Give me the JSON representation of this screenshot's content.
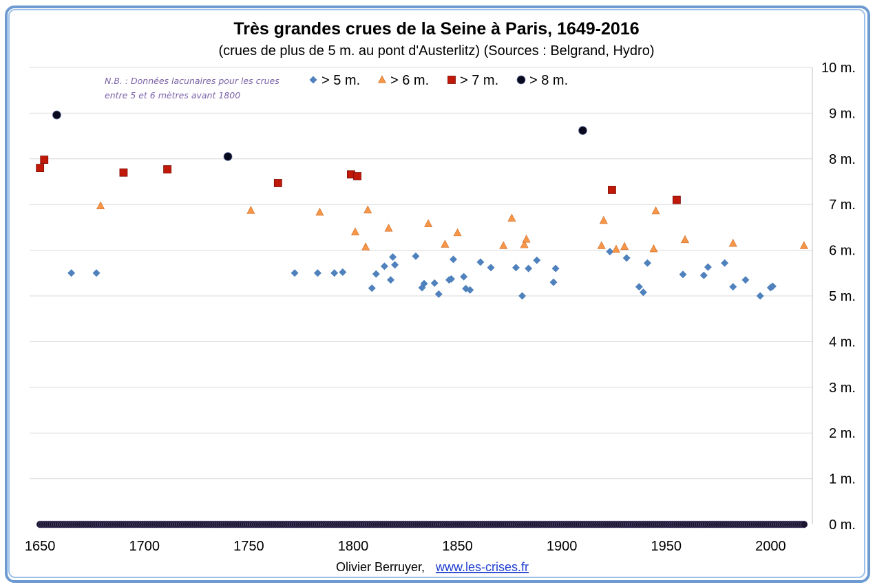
{
  "chart_data": {
    "type": "scatter",
    "title": "Très grandes crues de la Seine à Paris, 1649-2016",
    "subtitle": "(crues de plus de 5 m. au pont d'Austerlitz) (Sources : Belgrand, Hydro)",
    "note": [
      "N.B. : Données lacunaires pour les crues",
      "entre 5 et 6 mètres avant 1800"
    ],
    "xlim": [
      1645,
      2020
    ],
    "ylim": [
      0,
      10
    ],
    "x_ticks": [
      1650,
      1700,
      1750,
      1800,
      1850,
      1900,
      1950,
      2000
    ],
    "y_ticks": [
      {
        "value": 0,
        "label": "0 m."
      },
      {
        "value": 1,
        "label": "1 m."
      },
      {
        "value": 2,
        "label": "2 m."
      },
      {
        "value": 3,
        "label": "3 m."
      },
      {
        "value": 4,
        "label": "4 m."
      },
      {
        "value": 5,
        "label": "5 m."
      },
      {
        "value": 6,
        "label": "6 m."
      },
      {
        "value": 7,
        "label": "7 m."
      },
      {
        "value": 8,
        "label": "8 m."
      },
      {
        "value": 9,
        "label": "9 m."
      },
      {
        "value": 10,
        "label": "10 m."
      }
    ],
    "grid": "horizontal",
    "y_axis_side": "right",
    "legend_position": "top",
    "baseline": {
      "y": 0,
      "x_from": 1650,
      "x_to": 2016
    },
    "series": [
      {
        "name": "> 5 m.",
        "marker": "diamond",
        "color": "#4f81bd",
        "points": [
          [
            1665,
            5.5
          ],
          [
            1677,
            5.5
          ],
          [
            1772,
            5.5
          ],
          [
            1783,
            5.5
          ],
          [
            1791,
            5.5
          ],
          [
            1795,
            5.52
          ],
          [
            1809,
            5.17
          ],
          [
            1811,
            5.48
          ],
          [
            1815,
            5.65
          ],
          [
            1818,
            5.35
          ],
          [
            1819,
            5.85
          ],
          [
            1820,
            5.68
          ],
          [
            1830,
            5.87
          ],
          [
            1833,
            5.18
          ],
          [
            1834,
            5.27
          ],
          [
            1839,
            5.28
          ],
          [
            1841,
            5.04
          ],
          [
            1846,
            5.35
          ],
          [
            1847,
            5.37
          ],
          [
            1848,
            5.8
          ],
          [
            1853,
            5.42
          ],
          [
            1854,
            5.16
          ],
          [
            1856,
            5.13
          ],
          [
            1861,
            5.74
          ],
          [
            1866,
            5.62
          ],
          [
            1878,
            5.62
          ],
          [
            1881,
            5.0
          ],
          [
            1884,
            5.6
          ],
          [
            1888,
            5.78
          ],
          [
            1896,
            5.3
          ],
          [
            1897,
            5.6
          ],
          [
            1923,
            5.97
          ],
          [
            1931,
            5.83
          ],
          [
            1937,
            5.2
          ],
          [
            1939,
            5.08
          ],
          [
            1941,
            5.72
          ],
          [
            1958,
            5.47
          ],
          [
            1968,
            5.45
          ],
          [
            1970,
            5.63
          ],
          [
            1978,
            5.72
          ],
          [
            1982,
            5.2
          ],
          [
            1988,
            5.35
          ],
          [
            1995,
            5.0
          ],
          [
            2000,
            5.18
          ],
          [
            2001,
            5.21
          ]
        ]
      },
      {
        "name": "> 6 m.",
        "marker": "triangle",
        "color": "#f79646",
        "points": [
          [
            1679,
            6.97
          ],
          [
            1751,
            6.87
          ],
          [
            1784,
            6.83
          ],
          [
            1801,
            6.4
          ],
          [
            1806,
            6.07
          ],
          [
            1807,
            6.88
          ],
          [
            1817,
            6.48
          ],
          [
            1836,
            6.58
          ],
          [
            1844,
            6.13
          ],
          [
            1850,
            6.38
          ],
          [
            1872,
            6.1
          ],
          [
            1876,
            6.7
          ],
          [
            1882,
            6.12
          ],
          [
            1883,
            6.24
          ],
          [
            1919,
            6.1
          ],
          [
            1920,
            6.65
          ],
          [
            1926,
            6.02
          ],
          [
            1930,
            6.08
          ],
          [
            1944,
            6.03
          ],
          [
            1945,
            6.86
          ],
          [
            1959,
            6.23
          ],
          [
            1982,
            6.15
          ],
          [
            2016,
            6.1
          ]
        ]
      },
      {
        "name": "> 7 m.",
        "marker": "square",
        "color": "#c0190a",
        "points": [
          [
            1650,
            7.8
          ],
          [
            1652,
            7.98
          ],
          [
            1690,
            7.7
          ],
          [
            1711,
            7.77
          ],
          [
            1764,
            7.47
          ],
          [
            1799,
            7.66
          ],
          [
            1802,
            7.62
          ],
          [
            1924,
            7.32
          ],
          [
            1955,
            7.1
          ]
        ]
      },
      {
        "name": "> 8 m.",
        "marker": "circle",
        "color": "#0a0a1e",
        "points": [
          [
            1658,
            8.96
          ],
          [
            1740,
            8.05
          ],
          [
            1910,
            8.62
          ]
        ]
      }
    ]
  },
  "credit": {
    "author": "Olivier Berruyer,",
    "link": "www.les-crises.fr"
  }
}
